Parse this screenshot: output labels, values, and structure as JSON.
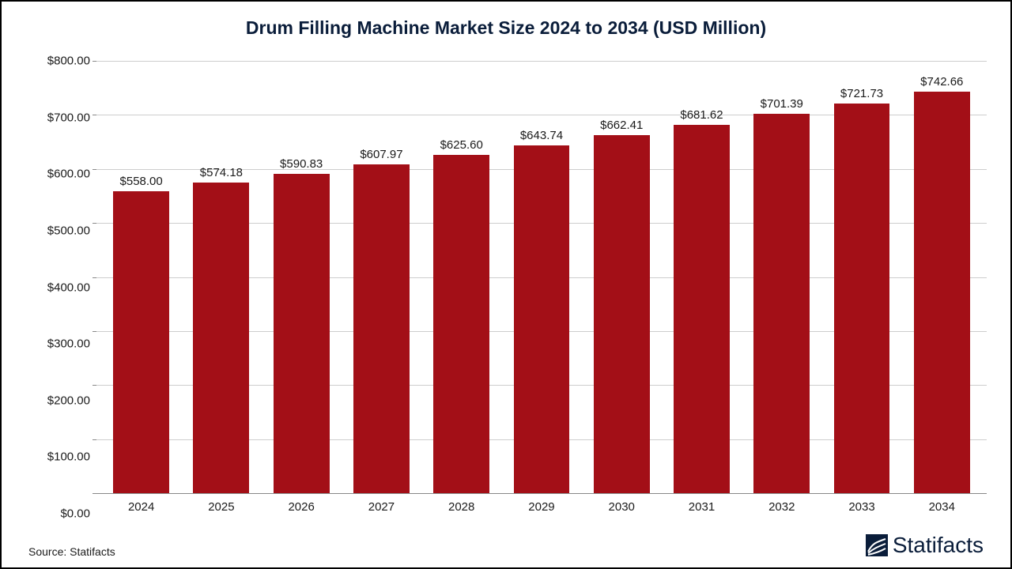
{
  "chart": {
    "type": "bar",
    "title": "Drum Filling Machine Market Size 2024 to 2034 (USD Million)",
    "title_color": "#0a1d3a",
    "title_fontsize": 23,
    "categories": [
      "2024",
      "2025",
      "2026",
      "2027",
      "2028",
      "2029",
      "2030",
      "2031",
      "2032",
      "2033",
      "2034"
    ],
    "values": [
      558.0,
      574.18,
      590.83,
      607.97,
      625.6,
      643.74,
      662.41,
      681.62,
      701.39,
      721.73,
      742.66
    ],
    "value_labels": [
      "$558.00",
      "$574.18",
      "$590.83",
      "$607.97",
      "$625.60",
      "$643.74",
      "$662.41",
      "$681.62",
      "$701.39",
      "$721.73",
      "$742.66"
    ],
    "bar_color": "#a30f17",
    "ylim": [
      0,
      800
    ],
    "ytick_step": 100,
    "ytick_labels": [
      "$0.00",
      "$100.00",
      "$200.00",
      "$300.00",
      "$400.00",
      "$500.00",
      "$600.00",
      "$700.00",
      "$800.00"
    ],
    "grid_color": "#cdcdcd",
    "axis_color": "#888888",
    "background_color": "#ffffff",
    "label_fontsize": 15,
    "bar_width_ratio": 0.7
  },
  "footer": {
    "source_text": "Source: Statifacts",
    "brand_text": "Statifacts",
    "brand_color": "#0a1d3a"
  }
}
